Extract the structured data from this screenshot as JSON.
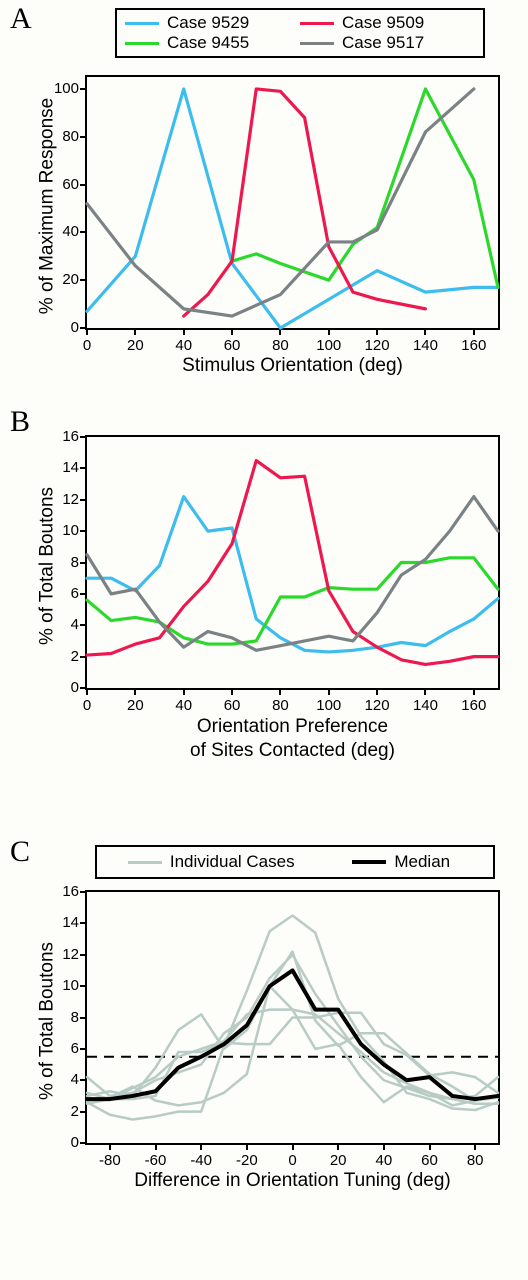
{
  "colors": {
    "case9529": "#3dbdee",
    "case9455": "#2dd82d",
    "case9509": "#ed1850",
    "case9517": "#7b8285",
    "median": "#000000",
    "individual": "#b8cbc5",
    "bg": "#fdfef9"
  },
  "panelA": {
    "label": "A",
    "ylabel": "% of Maximum Response",
    "xlabel": "Stimulus Orientation (deg)",
    "xlim": [
      0,
      170
    ],
    "ylim": [
      0,
      105
    ],
    "xticks": [
      0,
      20,
      40,
      60,
      80,
      100,
      120,
      140,
      160
    ],
    "yticks": [
      0,
      20,
      40,
      60,
      80,
      100
    ],
    "legend": [
      {
        "label": "Case 9529",
        "color": "case9529"
      },
      {
        "label": "Case 9509",
        "color": "case9509"
      },
      {
        "label": "Case 9455",
        "color": "case9455"
      },
      {
        "label": "Case 9517",
        "color": "case9517"
      }
    ],
    "series": {
      "case9529": [
        [
          0,
          7
        ],
        [
          20,
          30
        ],
        [
          40,
          100
        ],
        [
          60,
          27
        ],
        [
          80,
          0
        ],
        [
          100,
          12
        ],
        [
          120,
          24
        ],
        [
          140,
          15
        ],
        [
          160,
          17
        ],
        [
          170,
          17
        ]
      ],
      "case9455": [
        [
          60,
          28
        ],
        [
          70,
          31
        ],
        [
          80,
          27
        ],
        [
          100,
          20
        ],
        [
          110,
          35
        ],
        [
          120,
          42
        ],
        [
          140,
          100
        ],
        [
          160,
          62
        ],
        [
          170,
          17
        ]
      ],
      "case9509": [
        [
          40,
          5
        ],
        [
          50,
          14
        ],
        [
          60,
          28
        ],
        [
          70,
          100
        ],
        [
          80,
          99
        ],
        [
          90,
          88
        ],
        [
          100,
          34
        ],
        [
          110,
          15
        ],
        [
          120,
          12
        ],
        [
          140,
          8
        ]
      ],
      "case9517": [
        [
          0,
          52
        ],
        [
          20,
          26
        ],
        [
          40,
          8
        ],
        [
          60,
          5
        ],
        [
          80,
          14
        ],
        [
          100,
          36
        ],
        [
          110,
          36
        ],
        [
          120,
          41
        ],
        [
          140,
          82
        ],
        [
          160,
          100
        ]
      ]
    }
  },
  "panelB": {
    "label": "B",
    "ylabel": "% of Total Boutons",
    "xlabel": "Orientation Preference\nof Sites Contacted (deg)",
    "xlim": [
      0,
      170
    ],
    "ylim": [
      0,
      16
    ],
    "xticks": [
      0,
      20,
      40,
      60,
      80,
      100,
      120,
      140,
      160
    ],
    "yticks": [
      0,
      2,
      4,
      6,
      8,
      10,
      12,
      14,
      16
    ],
    "series": {
      "case9529": [
        [
          0,
          7.0
        ],
        [
          10,
          7.0
        ],
        [
          20,
          6.2
        ],
        [
          30,
          7.8
        ],
        [
          40,
          12.2
        ],
        [
          50,
          10.0
        ],
        [
          60,
          10.2
        ],
        [
          70,
          4.4
        ],
        [
          80,
          3.2
        ],
        [
          90,
          2.4
        ],
        [
          100,
          2.3
        ],
        [
          110,
          2.4
        ],
        [
          120,
          2.6
        ],
        [
          130,
          2.9
        ],
        [
          140,
          2.7
        ],
        [
          150,
          3.6
        ],
        [
          160,
          4.4
        ],
        [
          170,
          5.7
        ]
      ],
      "case9455": [
        [
          0,
          5.6
        ],
        [
          10,
          4.3
        ],
        [
          20,
          4.5
        ],
        [
          30,
          4.2
        ],
        [
          40,
          3.2
        ],
        [
          50,
          2.8
        ],
        [
          60,
          2.8
        ],
        [
          70,
          3.0
        ],
        [
          80,
          5.8
        ],
        [
          90,
          5.8
        ],
        [
          100,
          6.4
        ],
        [
          110,
          6.3
        ],
        [
          120,
          6.3
        ],
        [
          130,
          8.0
        ],
        [
          140,
          8.0
        ],
        [
          150,
          8.3
        ],
        [
          160,
          8.3
        ],
        [
          170,
          6.3
        ]
      ],
      "case9509": [
        [
          0,
          2.1
        ],
        [
          10,
          2.2
        ],
        [
          20,
          2.8
        ],
        [
          30,
          3.2
        ],
        [
          40,
          5.2
        ],
        [
          50,
          6.8
        ],
        [
          60,
          9.2
        ],
        [
          70,
          14.5
        ],
        [
          80,
          13.4
        ],
        [
          90,
          13.5
        ],
        [
          100,
          6.2
        ],
        [
          110,
          3.6
        ],
        [
          120,
          2.6
        ],
        [
          130,
          1.8
        ],
        [
          140,
          1.5
        ],
        [
          150,
          1.7
        ],
        [
          160,
          2.0
        ],
        [
          170,
          2.0
        ]
      ],
      "case9517": [
        [
          0,
          8.5
        ],
        [
          10,
          6.0
        ],
        [
          20,
          6.3
        ],
        [
          30,
          4.2
        ],
        [
          40,
          2.6
        ],
        [
          50,
          3.6
        ],
        [
          60,
          3.2
        ],
        [
          70,
          2.4
        ],
        [
          80,
          2.7
        ],
        [
          90,
          3.0
        ],
        [
          100,
          3.3
        ],
        [
          110,
          3.0
        ],
        [
          120,
          4.8
        ],
        [
          130,
          7.2
        ],
        [
          140,
          8.2
        ],
        [
          150,
          10.0
        ],
        [
          160,
          12.2
        ],
        [
          170,
          10.0
        ]
      ]
    }
  },
  "panelC": {
    "label": "C",
    "ylabel": "% of Total Boutons",
    "xlabel": "Difference in Orientation Tuning (deg)",
    "xlim": [
      -90,
      90
    ],
    "ylim": [
      0,
      16
    ],
    "xticks": [
      -80,
      -60,
      -40,
      -20,
      0,
      20,
      40,
      60,
      80
    ],
    "yticks": [
      0,
      2,
      4,
      6,
      8,
      10,
      12,
      14,
      16
    ],
    "reference_line": 5.5,
    "legend": [
      {
        "label": "Individual Cases",
        "color": "individual"
      },
      {
        "label": "Median",
        "color": "median"
      }
    ],
    "individual": [
      [
        [
          -90,
          2.7
        ],
        [
          -80,
          2.9
        ],
        [
          -70,
          3.6
        ],
        [
          -60,
          2.7
        ],
        [
          -50,
          2.4
        ],
        [
          -40,
          2.6
        ],
        [
          -30,
          3.2
        ],
        [
          -20,
          4.4
        ],
        [
          -10,
          10.0
        ],
        [
          0,
          12.2
        ],
        [
          10,
          7.8
        ],
        [
          20,
          6.2
        ],
        [
          30,
          7.0
        ],
        [
          40,
          7.0
        ],
        [
          50,
          5.7
        ],
        [
          60,
          4.4
        ],
        [
          70,
          3.6
        ],
        [
          80,
          2.7
        ],
        [
          90,
          2.9
        ]
      ],
      [
        [
          -90,
          3.2
        ],
        [
          -80,
          2.8
        ],
        [
          -70,
          2.8
        ],
        [
          -60,
          3.0
        ],
        [
          -50,
          5.8
        ],
        [
          -40,
          5.8
        ],
        [
          -30,
          6.4
        ],
        [
          -20,
          6.3
        ],
        [
          -10,
          6.3
        ],
        [
          0,
          8.0
        ],
        [
          10,
          8.0
        ],
        [
          20,
          8.3
        ],
        [
          30,
          8.3
        ],
        [
          40,
          6.3
        ],
        [
          50,
          5.6
        ],
        [
          60,
          4.3
        ],
        [
          70,
          4.5
        ],
        [
          80,
          4.2
        ],
        [
          90,
          3.2
        ]
      ],
      [
        [
          -90,
          2.6
        ],
        [
          -80,
          1.8
        ],
        [
          -70,
          1.5
        ],
        [
          -60,
          1.7
        ],
        [
          -50,
          2.0
        ],
        [
          -40,
          2.0
        ],
        [
          -30,
          6.2
        ],
        [
          -20,
          9.7
        ],
        [
          -10,
          13.5
        ],
        [
          0,
          14.5
        ],
        [
          10,
          13.4
        ],
        [
          20,
          9.2
        ],
        [
          30,
          6.8
        ],
        [
          40,
          5.2
        ],
        [
          50,
          3.2
        ],
        [
          60,
          2.8
        ],
        [
          70,
          2.2
        ],
        [
          80,
          2.1
        ],
        [
          90,
          2.6
        ]
      ],
      [
        [
          -90,
          3.0
        ],
        [
          -80,
          3.3
        ],
        [
          -70,
          3.0
        ],
        [
          -60,
          4.8
        ],
        [
          -50,
          7.2
        ],
        [
          -40,
          8.2
        ],
        [
          -30,
          6.0
        ],
        [
          -20,
          7.2
        ],
        [
          -10,
          10.0
        ],
        [
          0,
          8.5
        ],
        [
          10,
          6.0
        ],
        [
          20,
          6.3
        ],
        [
          30,
          4.2
        ],
        [
          40,
          2.6
        ],
        [
          50,
          3.6
        ],
        [
          60,
          3.2
        ],
        [
          70,
          2.4
        ],
        [
          80,
          2.7
        ],
        [
          90,
          3.0
        ]
      ],
      [
        [
          -90,
          4.2
        ],
        [
          -80,
          3.0
        ],
        [
          -70,
          3.2
        ],
        [
          -60,
          4.0
        ],
        [
          -50,
          4.5
        ],
        [
          -40,
          5.0
        ],
        [
          -30,
          7.0
        ],
        [
          -20,
          8.0
        ],
        [
          -10,
          10.5
        ],
        [
          0,
          12.0
        ],
        [
          10,
          9.5
        ],
        [
          20,
          7.5
        ],
        [
          30,
          5.5
        ],
        [
          40,
          4.0
        ],
        [
          50,
          3.5
        ],
        [
          60,
          3.0
        ],
        [
          70,
          2.8
        ],
        [
          80,
          3.0
        ],
        [
          90,
          4.2
        ]
      ],
      [
        [
          -90,
          2.5
        ],
        [
          -80,
          2.8
        ],
        [
          -70,
          3.5
        ],
        [
          -60,
          4.2
        ],
        [
          -50,
          5.5
        ],
        [
          -40,
          6.0
        ],
        [
          -30,
          6.5
        ],
        [
          -20,
          8.2
        ],
        [
          -10,
          8.5
        ],
        [
          0,
          8.5
        ],
        [
          10,
          8.2
        ],
        [
          20,
          7.0
        ],
        [
          30,
          5.8
        ],
        [
          40,
          4.5
        ],
        [
          50,
          3.8
        ],
        [
          60,
          3.2
        ],
        [
          70,
          2.8
        ],
        [
          80,
          2.5
        ],
        [
          90,
          2.5
        ]
      ]
    ],
    "median": [
      [
        -90,
        2.8
      ],
      [
        -80,
        2.8
      ],
      [
        -70,
        3.0
      ],
      [
        -60,
        3.3
      ],
      [
        -50,
        4.8
      ],
      [
        -40,
        5.5
      ],
      [
        -30,
        6.3
      ],
      [
        -20,
        7.5
      ],
      [
        -10,
        10.0
      ],
      [
        0,
        11.0
      ],
      [
        10,
        8.5
      ],
      [
        20,
        8.5
      ],
      [
        30,
        6.3
      ],
      [
        40,
        5.0
      ],
      [
        50,
        4.0
      ],
      [
        60,
        4.2
      ],
      [
        70,
        3.0
      ],
      [
        80,
        2.8
      ],
      [
        90,
        3.0
      ]
    ]
  }
}
